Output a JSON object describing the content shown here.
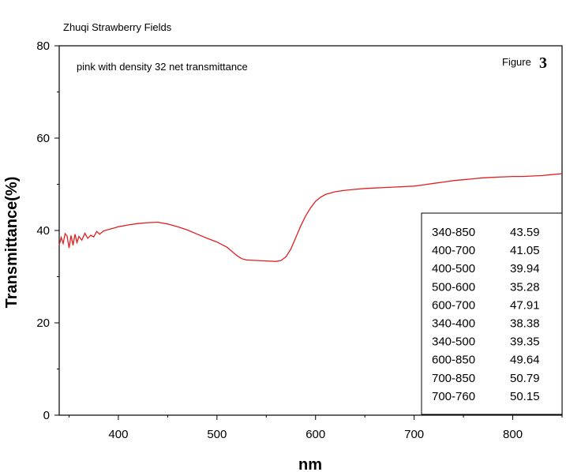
{
  "chart_data": {
    "type": "line",
    "title": "Zhuqi Strawberry Fields",
    "subtitle": "pink with density 32 net  transmittance",
    "figure_label": "Figure",
    "figure_number": "3",
    "xlabel": "nm",
    "ylabel": "Transmittance(%)",
    "xlim": [
      340,
      850
    ],
    "ylim": [
      0,
      80
    ],
    "x_ticks": [
      400,
      500,
      600,
      700,
      800
    ],
    "y_ticks": [
      0,
      20,
      40,
      60,
      80
    ],
    "grid": false,
    "line_color": "#e02020",
    "series": [
      {
        "x": [
          340,
          342,
          344,
          346,
          348,
          350,
          352,
          354,
          356,
          358,
          360,
          363,
          366,
          369,
          372,
          375,
          378,
          381,
          385,
          390,
          395,
          400,
          410,
          420,
          430,
          440,
          450,
          460,
          470,
          480,
          490,
          500,
          510,
          515,
          520,
          525,
          530,
          540,
          550,
          560,
          565,
          570,
          575,
          580,
          585,
          590,
          595,
          600,
          605,
          610,
          615,
          620,
          630,
          640,
          650,
          660,
          670,
          680,
          690,
          700,
          710,
          720,
          730,
          740,
          750,
          760,
          770,
          780,
          790,
          800,
          810,
          820,
          830,
          840,
          850
        ],
        "y": [
          36.8,
          38.5,
          37.2,
          39.3,
          38.8,
          36.2,
          38.9,
          36.8,
          39.2,
          37.4,
          38.7,
          37.9,
          39.4,
          38.3,
          39.0,
          38.6,
          39.8,
          39.2,
          39.9,
          40.2,
          40.5,
          40.8,
          41.2,
          41.5,
          41.7,
          41.8,
          41.4,
          40.8,
          40.1,
          39.2,
          38.3,
          37.5,
          36.4,
          35.5,
          34.6,
          33.9,
          33.6,
          33.5,
          33.4,
          33.3,
          33.5,
          34.3,
          36.0,
          38.5,
          41.0,
          43.2,
          44.9,
          46.3,
          47.2,
          47.8,
          48.1,
          48.4,
          48.7,
          48.9,
          49.1,
          49.2,
          49.3,
          49.4,
          49.5,
          49.6,
          49.9,
          50.2,
          50.5,
          50.8,
          51.0,
          51.2,
          51.4,
          51.5,
          51.6,
          51.7,
          51.7,
          51.8,
          51.9,
          52.1,
          52.3
        ]
      }
    ],
    "table": [
      {
        "range": "340-850",
        "value": "43.59"
      },
      {
        "range": "400-700",
        "value": "41.05"
      },
      {
        "range": "400-500",
        "value": "39.94"
      },
      {
        "range": "500-600",
        "value": "35.28"
      },
      {
        "range": "600-700",
        "value": "47.91"
      },
      {
        "range": "340-400",
        "value": "38.38"
      },
      {
        "range": "340-500",
        "value": "39.35"
      },
      {
        "range": "600-850",
        "value": "49.64"
      },
      {
        "range": "700-850",
        "value": "50.79"
      },
      {
        "range": "700-760",
        "value": "50.15"
      }
    ]
  }
}
